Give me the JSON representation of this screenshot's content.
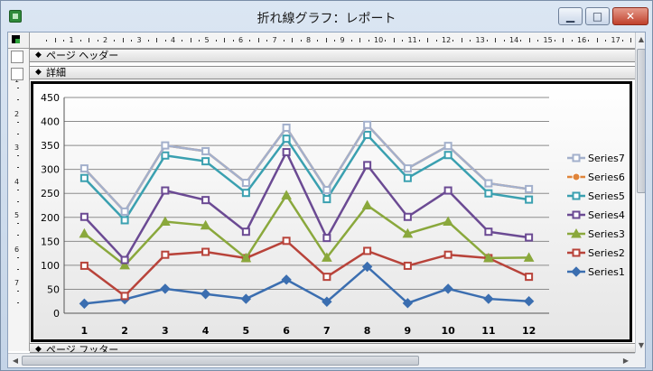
{
  "window": {
    "title": "折れ線グラフ：レポート",
    "controls": {
      "minimize": "▁",
      "maximize": "□",
      "close": "✕"
    }
  },
  "ruler": {
    "marks": [
      "1",
      "2",
      "3",
      "4",
      "5",
      "6",
      "7",
      "8",
      "9",
      "10",
      "11",
      "12",
      "13",
      "14",
      "15",
      "16",
      "17"
    ]
  },
  "vruler": {
    "marks": [
      "1",
      "2",
      "3",
      "4",
      "5",
      "6",
      "7"
    ]
  },
  "sections": {
    "page_header": "ページ ヘッダー",
    "detail": "詳細",
    "page_footer": "ページ フッター"
  },
  "colors": {
    "Series1": "#3b6eb0",
    "Series2": "#b8433a",
    "Series3": "#8aa83c",
    "Series4": "#6b4a93",
    "Series5": "#3aa0b0",
    "Series6": "#e0843a",
    "Series7": "#a3b0cc"
  },
  "chart_data": {
    "type": "line",
    "x": [
      1,
      2,
      3,
      4,
      5,
      6,
      7,
      8,
      9,
      10,
      11,
      12
    ],
    "ylim": [
      0,
      450
    ],
    "yticks": [
      0,
      50,
      100,
      150,
      200,
      250,
      300,
      350,
      400,
      450
    ],
    "grid": true,
    "legend": "right",
    "series": [
      {
        "name": "Series7",
        "marker": "square",
        "values": [
          302,
          212,
          350,
          338,
          272,
          387,
          257,
          393,
          302,
          349,
          271,
          259
        ]
      },
      {
        "name": "Series6",
        "marker": "circle",
        "values": [
          302,
          212,
          350,
          338,
          272,
          387,
          257,
          393,
          302,
          349,
          271,
          259
        ]
      },
      {
        "name": "Series5",
        "marker": "square",
        "values": [
          282,
          194,
          329,
          317,
          251,
          364,
          238,
          372,
          282,
          330,
          250,
          237
        ]
      },
      {
        "name": "Series4",
        "marker": "square",
        "values": [
          201,
          111,
          256,
          236,
          170,
          336,
          157,
          309,
          201,
          256,
          170,
          158
        ]
      },
      {
        "name": "Series3",
        "marker": "triangle",
        "values": [
          166,
          100,
          191,
          183,
          115,
          246,
          116,
          225,
          166,
          191,
          115,
          116
        ]
      },
      {
        "name": "Series2",
        "marker": "square",
        "values": [
          99,
          36,
          122,
          128,
          115,
          151,
          76,
          130,
          99,
          122,
          115,
          76
        ]
      },
      {
        "name": "Series1",
        "marker": "diamond",
        "values": [
          20,
          29,
          51,
          40,
          30,
          70,
          24,
          97,
          21,
          51,
          30,
          25
        ]
      }
    ]
  }
}
